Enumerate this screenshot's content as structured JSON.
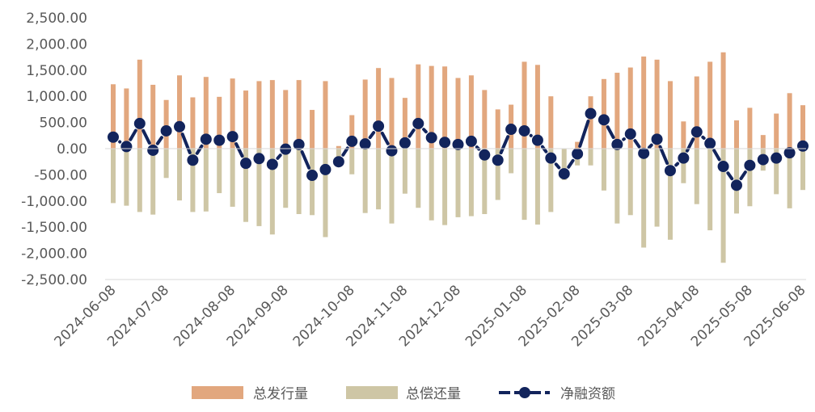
{
  "chart_data": {
    "type": "bar",
    "title": "",
    "xlabel": "",
    "ylabel": "",
    "ylim": [
      -2500,
      2500
    ],
    "y_ticks": [
      2500,
      2000,
      1500,
      1000,
      500,
      0,
      -500,
      -1000,
      -1500,
      -2000,
      -2500
    ],
    "y_tick_labels": [
      "2,500.00",
      "2,000.00",
      "1,500.00",
      "1,000.00",
      "500.00",
      "0.00",
      "-500.00",
      "-1,000.00",
      "-1,500.00",
      "-2,000.00",
      "-2,500.00"
    ],
    "x_tick_labels": [
      "2024-06-08",
      "2024-07-08",
      "2024-08-08",
      "2024-09-08",
      "2024-10-08",
      "2024-11-08",
      "2024-12-08",
      "2025-01-08",
      "2025-02-08",
      "2025-03-08",
      "2025-04-08",
      "2025-05-08",
      "2025-06-08"
    ],
    "x_tick_label_rotation_deg": -45,
    "weeks_per_month_tick": [
      4,
      5,
      4,
      5,
      4,
      4,
      5,
      4,
      4,
      5,
      4,
      5
    ],
    "grid": false,
    "legend_position": "bottom",
    "colors": {
      "issuance": "#E2A77E",
      "repayment": "#CEC6A5",
      "net": "#12245C"
    },
    "series": [
      {
        "name": "总发行量",
        "kind": "bar",
        "values": [
          1230,
          1150,
          1700,
          1220,
          930,
          1400,
          980,
          1370,
          990,
          1340,
          1110,
          1290,
          1310,
          1120,
          1310,
          740,
          1290,
          50,
          640,
          1320,
          1540,
          1350,
          970,
          1610,
          1580,
          1570,
          1350,
          1400,
          1120,
          750,
          840,
          1660,
          1600,
          1000,
          0,
          130,
          1000,
          1330,
          1450,
          1550,
          1760,
          1700,
          1290,
          520,
          1380,
          1660,
          1840,
          540,
          780,
          260,
          670,
          1060,
          830
        ]
      },
      {
        "name": "总偿还量",
        "kind": "bar",
        "values": [
          -1040,
          -1090,
          -1210,
          -1260,
          -560,
          -990,
          -1210,
          -1200,
          -850,
          -1110,
          -1400,
          -1480,
          -1640,
          -1130,
          -1250,
          -1270,
          -1690,
          -300,
          -490,
          -1230,
          -1160,
          -1430,
          -860,
          -1130,
          -1370,
          -1460,
          -1310,
          -1290,
          -1250,
          -980,
          -470,
          -1360,
          -1450,
          -1210,
          -600,
          -320,
          -320,
          -800,
          -1430,
          -1270,
          -1890,
          -1490,
          -1740,
          -660,
          -1060,
          -1560,
          -2180,
          -1240,
          -1100,
          -420,
          -870,
          -1140,
          -790
        ]
      },
      {
        "name": "净融资额",
        "kind": "line",
        "values": [
          220,
          40,
          480,
          -30,
          340,
          420,
          -220,
          180,
          160,
          230,
          -280,
          -190,
          -300,
          -10,
          80,
          -510,
          -400,
          -250,
          140,
          90,
          430,
          -40,
          110,
          480,
          210,
          120,
          80,
          140,
          -120,
          -220,
          370,
          340,
          160,
          -180,
          -480,
          -100,
          670,
          550,
          80,
          280,
          -90,
          180,
          -420,
          -180,
          320,
          100,
          -340,
          -700,
          -320,
          -210,
          -180,
          -80,
          50
        ]
      }
    ]
  }
}
